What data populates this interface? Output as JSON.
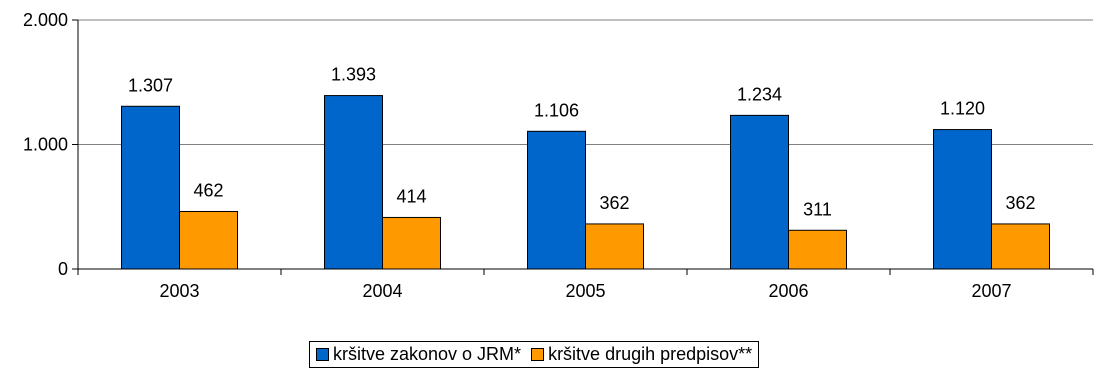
{
  "chart_data": {
    "type": "bar",
    "categories": [
      "2003",
      "2004",
      "2005",
      "2006",
      "2007"
    ],
    "series": [
      {
        "name": "kršitve zakonov o JRM*",
        "color": "#0066cc",
        "values": [
          1307,
          1393,
          1106,
          1234,
          1120
        ],
        "labels": [
          "1.307",
          "1.393",
          "1.106",
          "1.234",
          "1.120"
        ]
      },
      {
        "name": "kršitve drugih predpisov**",
        "color": "#ff9900",
        "values": [
          462,
          414,
          362,
          311,
          362
        ],
        "labels": [
          "462",
          "414",
          "362",
          "311",
          "362"
        ]
      }
    ],
    "ylim": [
      0,
      2000
    ],
    "yticks": [
      0,
      1000,
      2000
    ],
    "ytick_labels": [
      "0",
      "1.000",
      "2.000"
    ],
    "grid": true,
    "legend_position": "bottom"
  }
}
